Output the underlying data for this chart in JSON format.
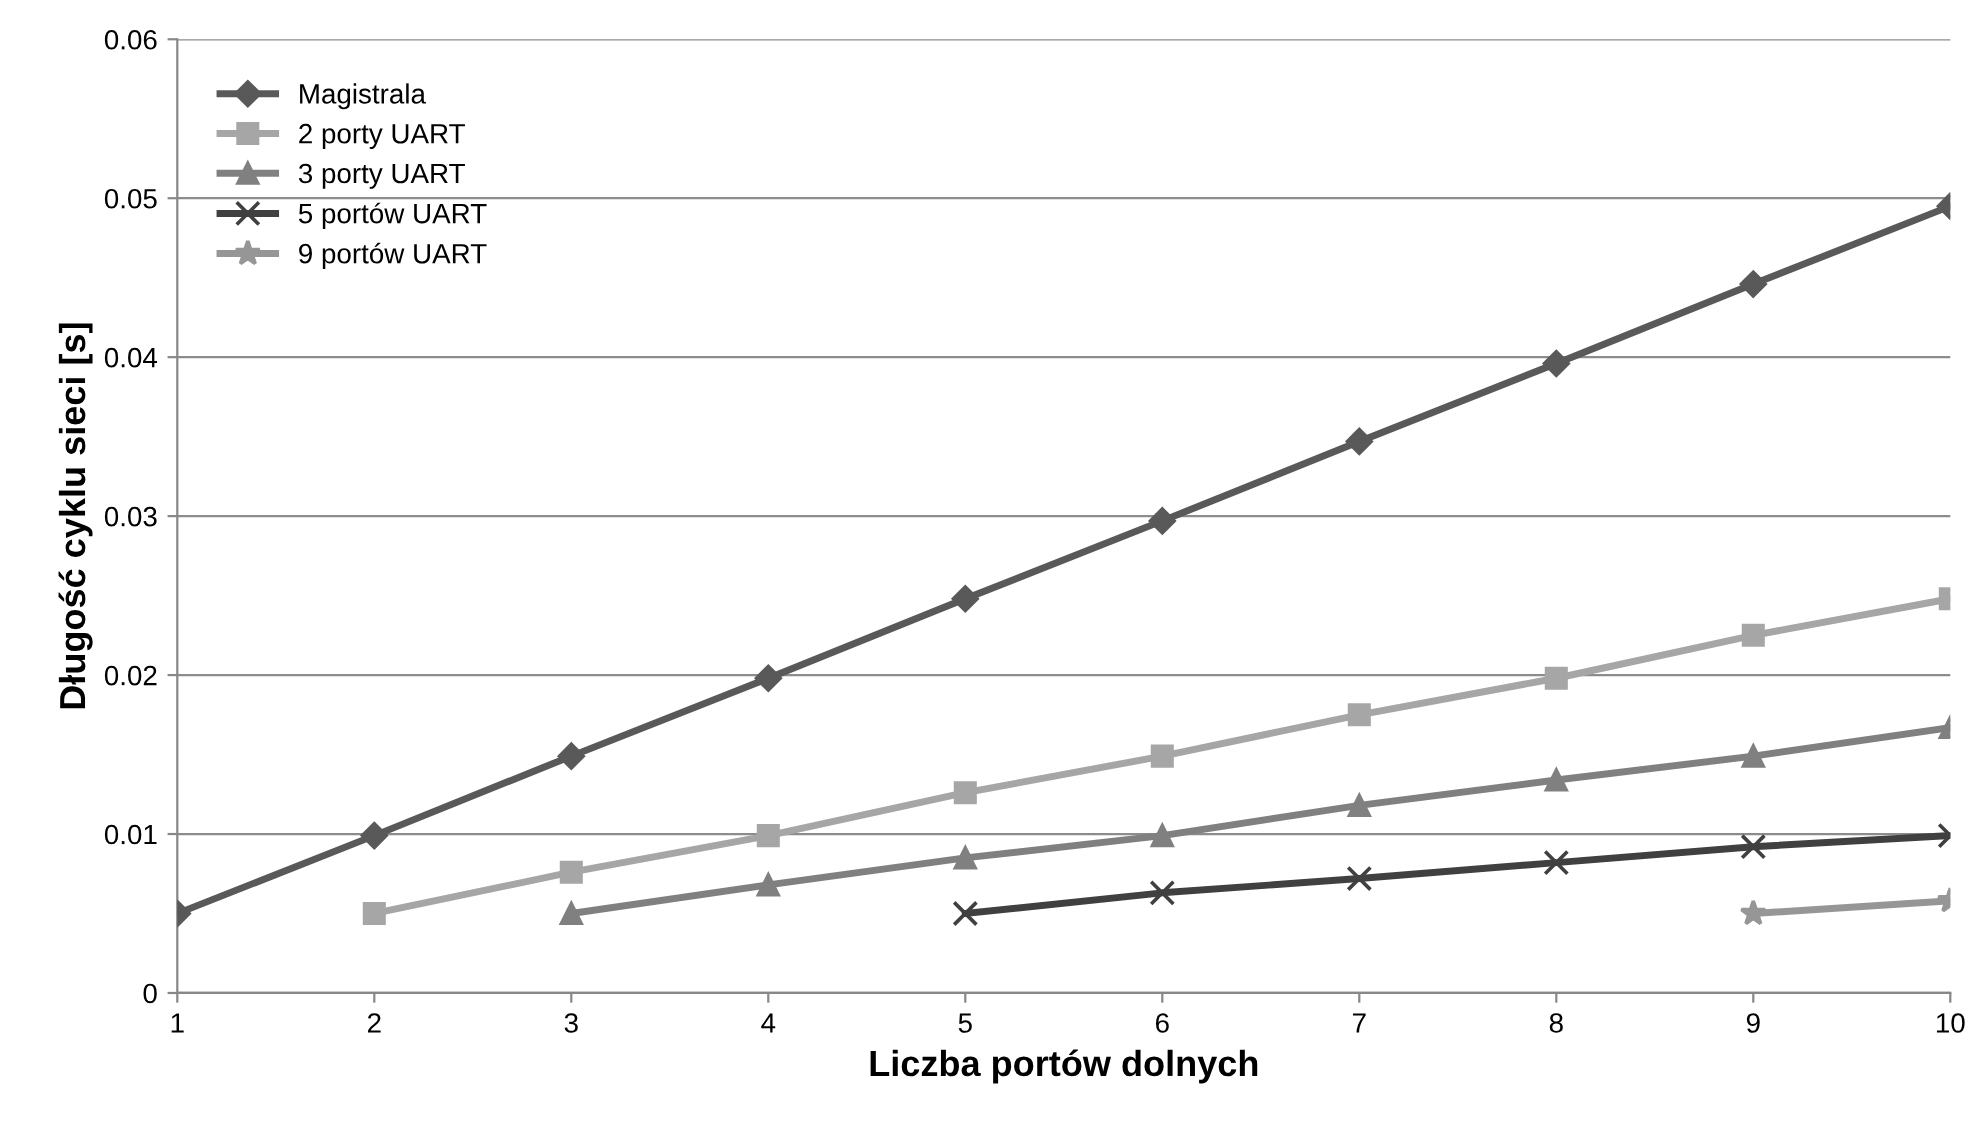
{
  "chart_data": {
    "type": "line",
    "xlabel": "Liczba portów dolnych",
    "ylabel": "Długość cyklu sieci [s]",
    "xlim": [
      1,
      10
    ],
    "xticks": [
      1,
      2,
      3,
      4,
      5,
      6,
      7,
      8,
      9,
      10
    ],
    "ylim": [
      0,
      0.06
    ],
    "yticks": [
      0,
      0.01,
      0.02,
      0.03,
      0.04,
      0.05,
      0.06
    ],
    "grid": "y",
    "legend": "top left",
    "line_style": "solid",
    "series": [
      {
        "name": "Magistrala",
        "color": "#595959",
        "marker": "diamond",
        "x": [
          1,
          2,
          3,
          4,
          5,
          6,
          7,
          8,
          9,
          10
        ],
        "values": [
          0.005,
          0.0099,
          0.0149,
          0.0198,
          0.0248,
          0.0297,
          0.0347,
          0.0396,
          0.0446,
          0.0495
        ]
      },
      {
        "name": "2 porty UART",
        "color": "#a6a6a6",
        "marker": "square",
        "x": [
          2,
          3,
          4,
          5,
          6,
          7,
          8,
          9,
          10
        ],
        "values": [
          0.005,
          0.0076,
          0.0099,
          0.0126,
          0.0149,
          0.0175,
          0.0198,
          0.0225,
          0.0248
        ]
      },
      {
        "name": "3 porty UART",
        "color": "#808080",
        "marker": "triangle",
        "x": [
          3,
          4,
          5,
          6,
          7,
          8,
          9,
          10
        ],
        "values": [
          0.005,
          0.0068,
          0.0085,
          0.0099,
          0.0118,
          0.0134,
          0.0149,
          0.0167
        ]
      },
      {
        "name": "5 portów UART",
        "color": "#404040",
        "marker": "cross",
        "x": [
          5,
          6,
          7,
          8,
          9,
          10
        ],
        "values": [
          0.005,
          0.0063,
          0.0072,
          0.0082,
          0.0092,
          0.0099
        ]
      },
      {
        "name": "9 portów UART",
        "color": "#969696",
        "marker": "star",
        "x": [
          9,
          10
        ],
        "values": [
          0.005,
          0.0058
        ]
      }
    ]
  }
}
